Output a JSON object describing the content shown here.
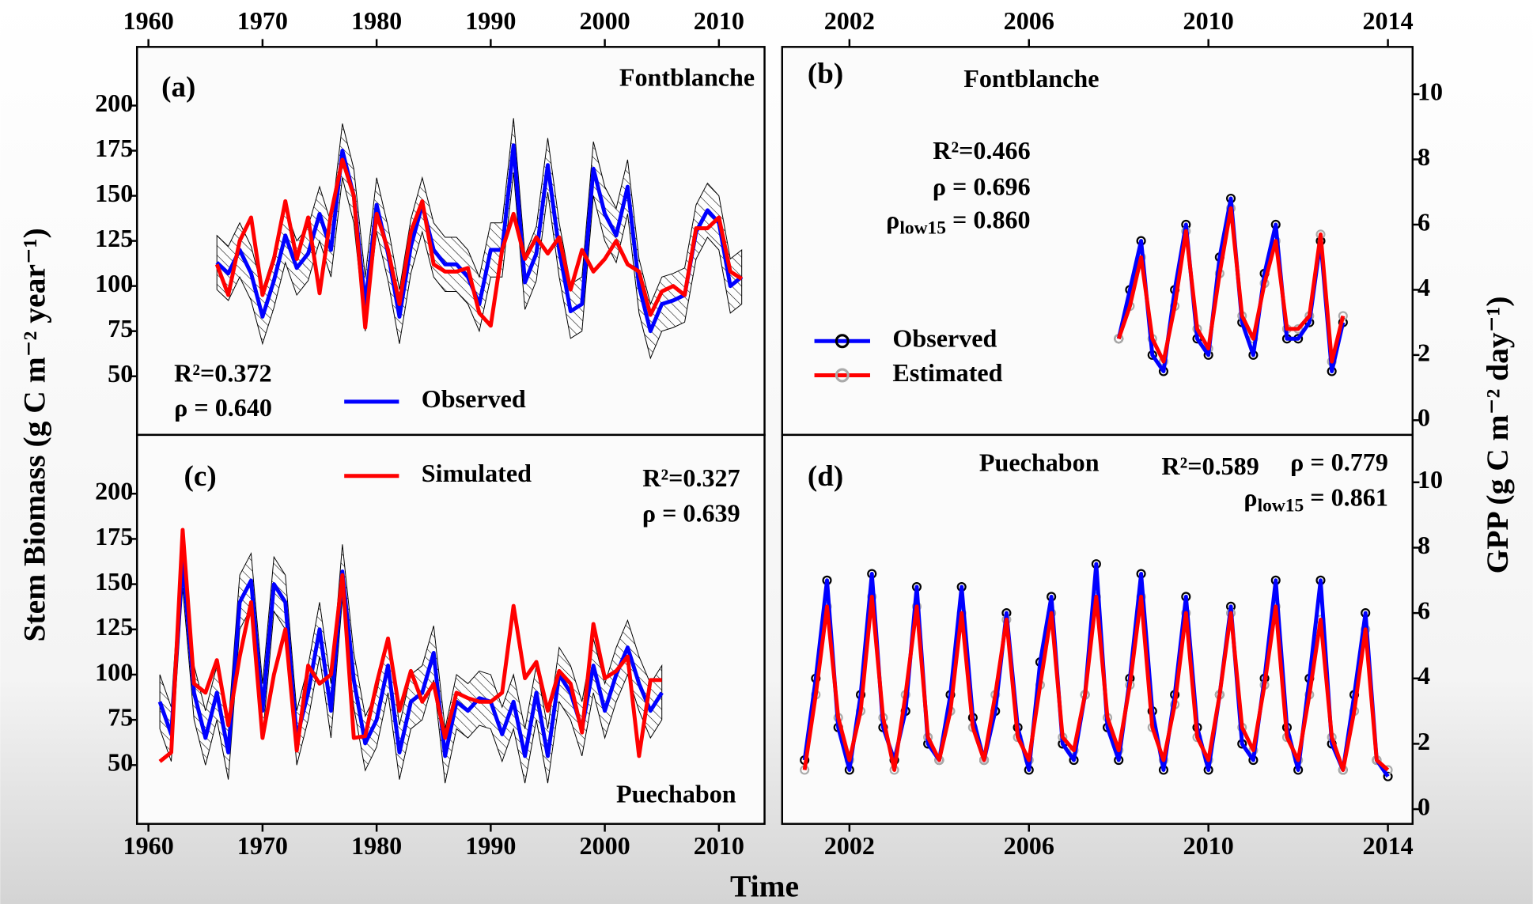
{
  "chart_data": [
    {
      "type": "line",
      "panel_label": "(a)",
      "site": "Fontblanche",
      "ylabel": "Stem Biomass (g C m⁻² year⁻¹)",
      "x": [
        1966,
        1967,
        1968,
        1969,
        1970,
        1971,
        1972,
        1973,
        1974,
        1975,
        1976,
        1977,
        1978,
        1979,
        1980,
        1981,
        1982,
        1983,
        1984,
        1985,
        1986,
        1987,
        1988,
        1989,
        1990,
        1991,
        1992,
        1993,
        1994,
        1995,
        1996,
        1997,
        1998,
        1999,
        2000,
        2001,
        2002,
        2003,
        2004,
        2005,
        2006,
        2007,
        2008,
        2009,
        2010,
        2011,
        2012
      ],
      "xlim": [
        1959,
        2014
      ],
      "xticks": [
        1960,
        1970,
        1980,
        1990,
        2000,
        2010
      ],
      "xaxis_side": "top",
      "ylim": [
        17.5,
        232.5
      ],
      "yticks": [
        50,
        75,
        100,
        125,
        150,
        175,
        200
      ],
      "yaxis_side": "left",
      "band": {
        "color": "#000000",
        "lower": [
          98,
          92,
          105,
          92,
          68,
          88,
          113,
          95,
          103,
          125,
          105,
          160,
          135,
          75,
          130,
          103,
          68,
          107,
          130,
          105,
          97,
          97,
          90,
          75,
          105,
          105,
          163,
          87,
          103,
          152,
          105,
          71,
          75,
          150,
          125,
          113,
          140,
          85,
          60,
          75,
          77,
          80,
          115,
          127,
          120,
          85,
          90
        ],
        "upper": [
          128,
          122,
          135,
          122,
          98,
          118,
          143,
          125,
          133,
          155,
          135,
          190,
          165,
          105,
          160,
          133,
          98,
          137,
          160,
          135,
          127,
          127,
          120,
          105,
          135,
          135,
          193,
          117,
          133,
          182,
          135,
          101,
          105,
          180,
          155,
          143,
          170,
          115,
          90,
          105,
          107,
          110,
          145,
          157,
          150,
          115,
          120
        ]
      },
      "series": [
        {
          "name": "Observed",
          "color": "#0000ff",
          "values": [
            113,
            107,
            120,
            107,
            83,
            103,
            128,
            110,
            118,
            140,
            120,
            175,
            150,
            90,
            145,
            118,
            83,
            122,
            145,
            120,
            112,
            112,
            105,
            90,
            120,
            120,
            178,
            102,
            118,
            167,
            120,
            86,
            90,
            165,
            140,
            128,
            155,
            100,
            75,
            90,
            92,
            95,
            130,
            142,
            135,
            100,
            105
          ]
        },
        {
          "color": "#ff0000",
          "values": [
            112,
            95,
            125,
            138,
            95,
            115,
            147,
            115,
            138,
            96,
            140,
            170,
            150,
            77,
            140,
            120,
            90,
            130,
            147,
            112,
            108,
            108,
            110,
            85,
            78,
            120,
            140,
            115,
            127,
            118,
            127,
            98,
            120,
            108,
            115,
            125,
            112,
            108,
            84,
            97,
            100,
            95,
            132,
            132,
            138,
            108,
            104
          ]
        }
      ],
      "stats": [
        {
          "text": "R²=0.372"
        },
        {
          "text": "ρ = 0.640"
        }
      ]
    },
    {
      "type": "line",
      "panel_label": "(b)",
      "site": "Fontblanche",
      "ylabel": "GPP (g C m⁻² day⁻¹)",
      "x": [
        2008,
        2008.25,
        2008.5,
        2008.75,
        2009,
        2009.25,
        2009.5,
        2009.75,
        2010,
        2010.25,
        2010.5,
        2010.75,
        2011,
        2011.25,
        2011.5,
        2011.75,
        2012,
        2012.25,
        2012.5,
        2012.75,
        2013
      ],
      "xlim": [
        2000.5,
        2014.55
      ],
      "xticks": [
        2002,
        2006,
        2010,
        2014
      ],
      "xaxis_side": "top",
      "ylim": [
        -0.45,
        11.45
      ],
      "yticks": [
        0,
        2,
        4,
        6,
        8,
        10
      ],
      "yaxis_side": "right",
      "series": [
        {
          "name": "Observed",
          "color": "#0000ff",
          "marker_color": "#000000",
          "values": [
            2.5,
            4,
            5.5,
            2,
            1.5,
            4,
            6,
            2.5,
            2,
            5,
            6.8,
            3,
            2,
            4.5,
            6,
            2.5,
            2.5,
            3,
            5.5,
            1.5,
            3
          ]
        },
        {
          "name": "Estimated",
          "color": "#ff0000",
          "marker_color": "#aaaaaa",
          "values": [
            2.5,
            3.5,
            5,
            2.5,
            1.8,
            3.5,
            5.8,
            2.8,
            2.2,
            4.5,
            6.5,
            3.2,
            2.5,
            4.2,
            5.5,
            2.8,
            2.8,
            3.2,
            5.7,
            1.8,
            3.2
          ]
        }
      ],
      "stats": [
        {
          "text": "R²=0.466"
        },
        {
          "text": "ρ = 0.696"
        },
        {
          "symbol": "ρ",
          "sub": "low15",
          "text": " = 0.860"
        }
      ]
    },
    {
      "type": "line",
      "panel_label": "(c)",
      "site": "Puechabon",
      "xlabel": "Time",
      "x": [
        1961,
        1962,
        1963,
        1964,
        1965,
        1966,
        1967,
        1968,
        1969,
        1970,
        1971,
        1972,
        1973,
        1974,
        1975,
        1976,
        1977,
        1978,
        1979,
        1980,
        1981,
        1982,
        1983,
        1984,
        1985,
        1986,
        1987,
        1988,
        1989,
        1990,
        1991,
        1992,
        1993,
        1994,
        1995,
        1996,
        1997,
        1998,
        1999,
        2000,
        2001,
        2002,
        2003,
        2004,
        2005
      ],
      "xlim": [
        1959,
        2014
      ],
      "xticks": [
        1960,
        1970,
        1980,
        1990,
        2000,
        2010
      ],
      "xaxis_side": "bottom",
      "ylim": [
        17.5,
        232.5
      ],
      "yticks": [
        50,
        75,
        100,
        125,
        150,
        175,
        200
      ],
      "yaxis_side": "left",
      "band": {
        "color": "#000000",
        "lower": [
          70,
          52,
          148,
          75,
          50,
          75,
          42,
          125,
          137,
          65,
          135,
          125,
          50,
          75,
          110,
          65,
          142,
          82,
          47,
          60,
          90,
          42,
          70,
          75,
          97,
          40,
          70,
          65,
          72,
          70,
          52,
          70,
          40,
          75,
          40,
          85,
          75,
          55,
          90,
          65,
          85,
          100,
          80,
          65,
          75
        ],
        "upper": [
          100,
          82,
          178,
          105,
          80,
          105,
          72,
          155,
          167,
          95,
          165,
          155,
          80,
          105,
          140,
          95,
          172,
          112,
          77,
          90,
          120,
          72,
          100,
          105,
          127,
          70,
          100,
          95,
          102,
          100,
          82,
          100,
          70,
          105,
          70,
          115,
          105,
          85,
          120,
          95,
          115,
          130,
          110,
          95,
          105
        ]
      },
      "series": [
        {
          "color": "#0000ff",
          "values": [
            85,
            67,
            163,
            90,
            65,
            90,
            57,
            140,
            152,
            80,
            150,
            140,
            65,
            90,
            125,
            80,
            157,
            97,
            62,
            75,
            105,
            57,
            85,
            90,
            112,
            55,
            85,
            80,
            87,
            85,
            67,
            85,
            55,
            90,
            55,
            100,
            90,
            70,
            105,
            80,
            100,
            115,
            95,
            80,
            90
          ]
        },
        {
          "name": "Simulated",
          "color": "#ff0000",
          "values": [
            52,
            57,
            180,
            95,
            90,
            108,
            72,
            110,
            140,
            65,
            100,
            125,
            58,
            105,
            95,
            100,
            155,
            65,
            66,
            95,
            120,
            80,
            102,
            85,
            95,
            65,
            90,
            87,
            85,
            85,
            90,
            138,
            98,
            107,
            80,
            102,
            95,
            68,
            128,
            98,
            102,
            110,
            55,
            97,
            97
          ]
        }
      ],
      "stats": [
        {
          "text": "R²=0.327"
        },
        {
          "text": "ρ = 0.639"
        }
      ]
    },
    {
      "type": "line",
      "panel_label": "(d)",
      "site": "Puechabon",
      "x": [
        2001,
        2001.25,
        2001.5,
        2001.75,
        2002,
        2002.25,
        2002.5,
        2002.75,
        2003,
        2003.25,
        2003.5,
        2003.75,
        2004,
        2004.25,
        2004.5,
        2004.75,
        2005,
        2005.25,
        2005.5,
        2005.75,
        2006,
        2006.25,
        2006.5,
        2006.75,
        2007,
        2007.25,
        2007.5,
        2007.75,
        2008,
        2008.25,
        2008.5,
        2008.75,
        2009,
        2009.25,
        2009.5,
        2009.75,
        2010,
        2010.25,
        2010.5,
        2010.75,
        2011,
        2011.25,
        2011.5,
        2011.75,
        2012,
        2012.25,
        2012.5,
        2012.75,
        2013,
        2013.25,
        2013.5,
        2013.75,
        2014
      ],
      "xlim": [
        2000.5,
        2014.55
      ],
      "xticks": [
        2002,
        2006,
        2010,
        2014
      ],
      "xaxis_side": "bottom",
      "ylim": [
        -0.45,
        11.45
      ],
      "yticks": [
        0,
        2,
        4,
        6,
        8,
        10
      ],
      "yaxis_side": "right",
      "series": [
        {
          "color": "#0000ff",
          "marker_color": "#000000",
          "values": [
            1.5,
            4,
            7,
            2.5,
            1.2,
            3.5,
            7.2,
            2.5,
            1.5,
            3,
            6.8,
            2,
            1.5,
            3.5,
            6.8,
            2.8,
            1.5,
            3,
            6,
            2.5,
            1.2,
            4.5,
            6.5,
            2,
            1.5,
            3.5,
            7.5,
            2.5,
            1.5,
            4,
            7.2,
            3,
            1.2,
            3.5,
            6.5,
            2.5,
            1.2,
            3.5,
            6.2,
            2,
            1.5,
            4,
            7,
            2.5,
            1.2,
            4,
            7,
            2,
            1.2,
            3.5,
            6,
            1.5,
            1
          ]
        },
        {
          "color": "#ff0000",
          "marker_color": "#aaaaaa",
          "values": [
            1.2,
            3.5,
            6.2,
            2.8,
            1.5,
            3,
            6.5,
            2.8,
            1.2,
            3.5,
            6.2,
            2.2,
            1.5,
            3,
            6,
            2.5,
            1.5,
            3.5,
            5.8,
            2.2,
            1.5,
            3.8,
            6,
            2.2,
            1.8,
            3.5,
            6.5,
            2.8,
            1.8,
            3.8,
            6.5,
            2.5,
            1.5,
            3.2,
            6,
            2.2,
            1.5,
            3.5,
            6,
            2.5,
            1.8,
            3.8,
            6.2,
            2.2,
            1.5,
            3.5,
            5.8,
            2.2,
            1.2,
            3,
            5.5,
            1.5,
            1.2
          ]
        }
      ],
      "stats": [
        {
          "text": "R²=0.589"
        },
        {
          "text": "ρ = 0.779"
        },
        {
          "symbol": "ρ",
          "sub": "low15",
          "text": " = 0.861"
        }
      ]
    }
  ]
}
